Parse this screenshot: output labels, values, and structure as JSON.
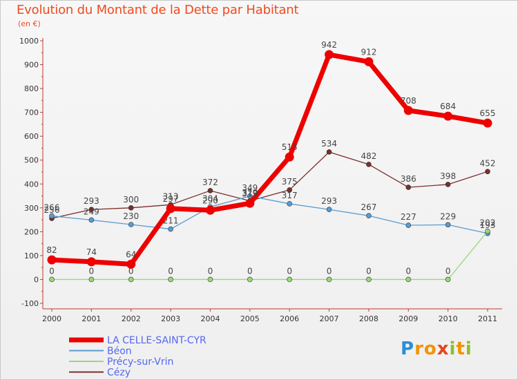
{
  "title": "Evolution du Montant de la Dette par Habitant",
  "subtitle": "(en €)",
  "logo": {
    "text": "Proxiti",
    "letters": [
      "P",
      "r",
      "o",
      "x",
      "i",
      "t",
      "i"
    ],
    "colors": [
      "#2a8fd6",
      "#f39200",
      "#f39200",
      "#e8431b",
      "#8cbf26",
      "#f39200",
      "#8cbf26"
    ]
  },
  "chart_data": {
    "type": "line",
    "categories": [
      "2000",
      "2001",
      "2002",
      "2003",
      "2004",
      "2005",
      "2006",
      "2007",
      "2008",
      "2009",
      "2010",
      "2011"
    ],
    "ylim": [
      -100,
      1000
    ],
    "yticks": [
      -100,
      0,
      100,
      200,
      300,
      400,
      500,
      600,
      700,
      800,
      900,
      1000
    ],
    "grid": false,
    "legend_position": "bottom-left",
    "series": [
      {
        "name": "Cézy",
        "color": "#7a2e2e",
        "width": 1.3,
        "values": [
          256,
          293,
          300,
          313,
          372,
          329,
          375,
          534,
          482,
          386,
          398,
          452
        ],
        "labels": [
          "256",
          "293",
          "300",
          "313",
          "372",
          "329",
          "375",
          "534",
          "482",
          "386",
          "398",
          "452"
        ]
      },
      {
        "name": "Béon",
        "color": "#5b9bd0",
        "width": 1.3,
        "values": [
          266,
          249,
          230,
          211,
          304,
          349,
          317,
          293,
          267,
          227,
          229,
          193
        ],
        "labels": [
          "266",
          "249",
          "230",
          "211",
          "304",
          "349",
          "317",
          "293",
          "267",
          "227",
          "229",
          "193"
        ]
      },
      {
        "name": "Précy-sur-Vrin",
        "color": "#9ad77a",
        "width": 1.3,
        "values": [
          0,
          0,
          0,
          0,
          0,
          0,
          0,
          0,
          0,
          0,
          0,
          202
        ],
        "labels": [
          "0",
          "0",
          "0",
          "0",
          "0",
          "0",
          "0",
          "0",
          "0",
          "0",
          "0",
          "202"
        ]
      },
      {
        "name": "LA CELLE-SAINT-CYR",
        "color": "#ee0000",
        "width": 7,
        "values": [
          82,
          74,
          64,
          297,
          290,
          319,
          513,
          942,
          912,
          708,
          684,
          655
        ],
        "labels": [
          "82",
          "74",
          "64",
          "297",
          "290",
          "319",
          "513",
          "942",
          "912",
          "708",
          "684",
          "655"
        ]
      }
    ],
    "legend": [
      {
        "name": "LA CELLE-SAINT-CYR",
        "color": "#ee0000",
        "width": 7
      },
      {
        "name": "Béon",
        "color": "#5b9bd0",
        "width": 2
      },
      {
        "name": "Précy-sur-Vrin",
        "color": "#9ad77a",
        "width": 2
      },
      {
        "name": "Cézy",
        "color": "#7a2e2e",
        "width": 2
      }
    ]
  }
}
